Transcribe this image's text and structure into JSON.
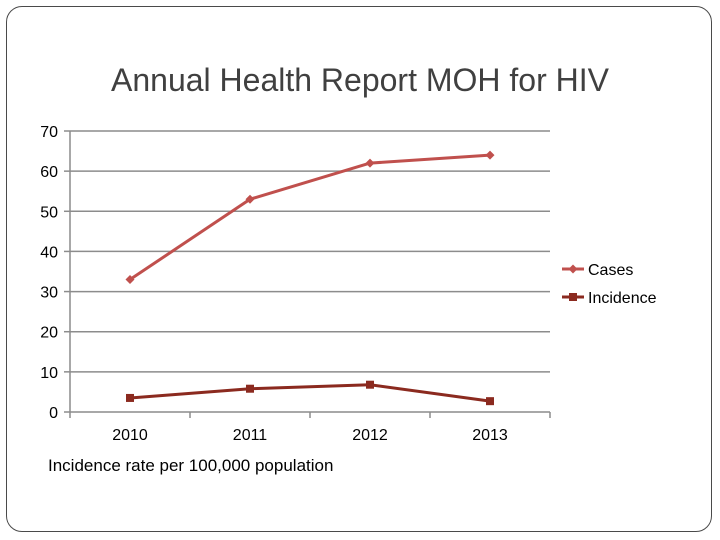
{
  "chart_data": {
    "type": "line",
    "title": "Annual Health Report MOH for HIV",
    "xlabel": "",
    "ylabel": "",
    "note": "Incidence rate per 100,000 population",
    "categories": [
      "2010",
      "2011",
      "2012",
      "2013"
    ],
    "series": [
      {
        "name": "Cases",
        "values": [
          33,
          53,
          62,
          64
        ],
        "color": "#c0504d",
        "marker": "diamond"
      },
      {
        "name": "Incidence",
        "values": [
          3.5,
          5.8,
          6.8,
          2.7
        ],
        "color": "#8b2a1f",
        "marker": "square"
      }
    ],
    "ylim": [
      0,
      70
    ],
    "yticks": [
      0,
      10,
      20,
      30,
      40,
      50,
      60,
      70
    ],
    "grid": true,
    "legend_position": "right"
  }
}
